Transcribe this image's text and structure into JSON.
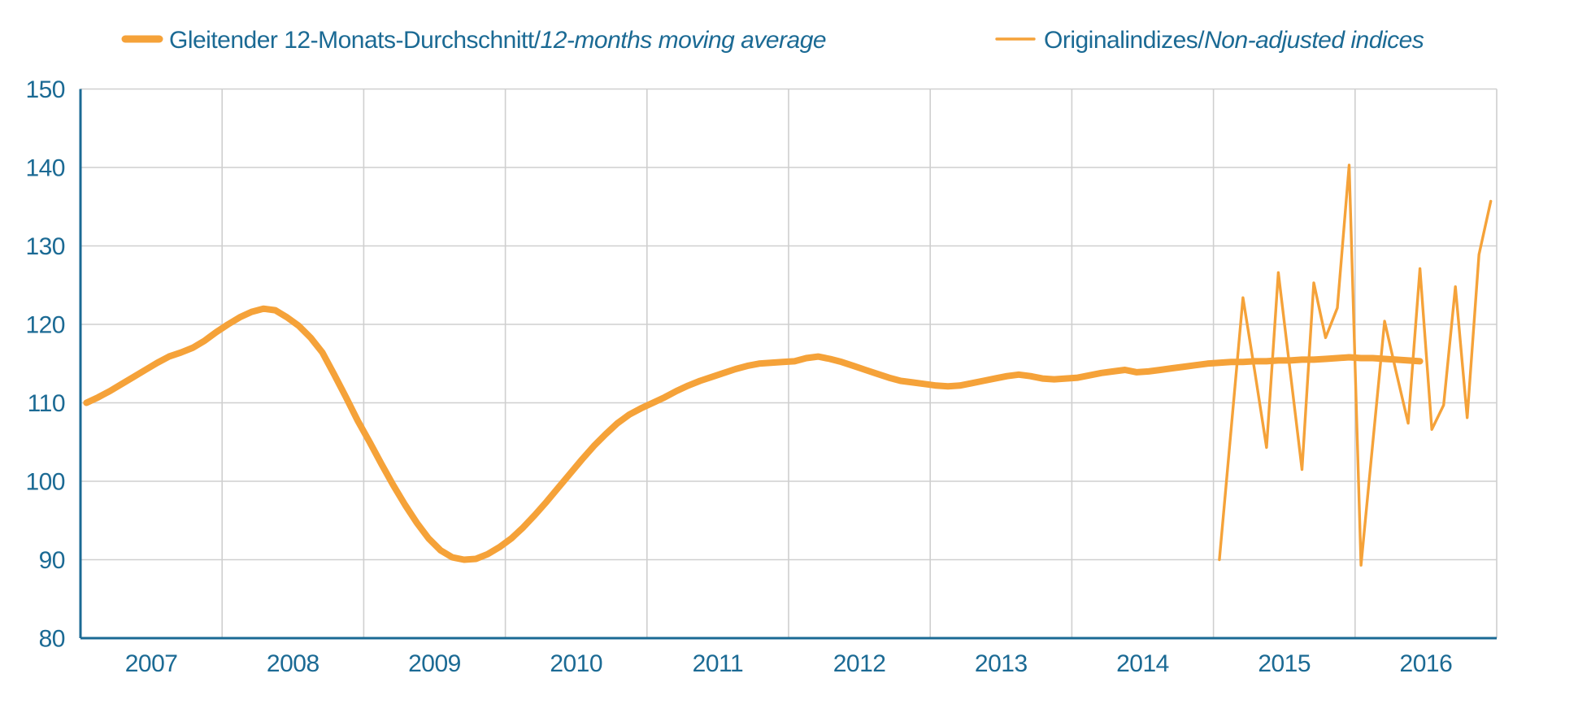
{
  "legend": [
    {
      "label_regular": "Gleitender 12-Monats-Durchschnitt/",
      "label_italic": "12-months moving average",
      "swatch": "thick-line"
    },
    {
      "label_regular": "Originalindizes/",
      "label_italic": "Non-adjusted indices",
      "swatch": "thin-line"
    }
  ],
  "colors": {
    "series_orange": "#F5A239",
    "axis_blue": "#1B6A94",
    "text_blue": "#1B6A94",
    "gridline_gray": "#CFCFCF",
    "background": "#FFFFFF"
  },
  "chart_data": {
    "type": "line",
    "title": "",
    "xlabel": "",
    "ylabel": "",
    "grid": true,
    "legend_position": "top",
    "y_axis": {
      "min": 80,
      "max": 150,
      "step": 10,
      "ticks": [
        150,
        140,
        130,
        120,
        110,
        100,
        90,
        80
      ]
    },
    "x_axis": {
      "ticks": [
        2007,
        2008,
        2009,
        2010,
        2011,
        2012,
        2013,
        2014,
        2015,
        2016
      ]
    },
    "series": [
      {
        "name": "Gleitender 12-Monats-Durchschnitt/12-months moving average",
        "style": "thick",
        "start_year": 2007,
        "start_month": 1,
        "values": [
          110.0,
          110.7,
          111.5,
          112.4,
          113.3,
          114.2,
          115.1,
          115.9,
          116.4,
          117.0,
          117.9,
          119.0,
          120.0,
          120.9,
          121.6,
          122.0,
          121.8,
          120.9,
          119.8,
          118.3,
          116.4,
          113.6,
          110.7,
          107.7,
          105.0,
          102.2,
          99.5,
          97.0,
          94.7,
          92.7,
          91.2,
          90.3,
          90.0,
          90.1,
          90.7,
          91.6,
          92.7,
          94.1,
          95.7,
          97.4,
          99.2,
          101.0,
          102.8,
          104.5,
          106.0,
          107.4,
          108.5,
          109.3,
          110.0,
          110.7,
          111.5,
          112.2,
          112.8,
          113.3,
          113.8,
          114.3,
          114.7,
          115.0,
          115.1,
          115.2,
          115.3,
          115.7,
          115.9,
          115.6,
          115.2,
          114.7,
          114.2,
          113.7,
          113.2,
          112.8,
          112.6,
          112.4,
          112.2,
          112.1,
          112.2,
          112.5,
          112.8,
          113.1,
          113.4,
          113.6,
          113.4,
          113.1,
          113.0,
          113.1,
          113.2,
          113.5,
          113.8,
          114.0,
          114.2,
          113.9,
          114.0,
          114.2,
          114.4,
          114.6,
          114.8,
          115.0,
          115.1,
          115.2,
          115.2,
          115.3,
          115.3,
          115.4,
          115.4,
          115.5,
          115.5,
          115.6,
          115.7,
          115.8,
          115.7,
          115.7,
          115.6,
          115.5,
          115.4,
          115.3
        ]
      },
      {
        "name": "Originalindizes/Non-adjusted indices",
        "style": "thin",
        "start_year": 2015,
        "start_month": 1,
        "values": [
          90.0,
          106.7,
          123.4,
          114.0,
          104.3,
          126.6,
          114.0,
          101.5,
          125.3,
          118.3,
          122.1,
          140.3,
          89.3,
          104.9,
          120.4,
          113.8,
          107.4,
          127.1,
          106.6,
          109.7,
          124.8,
          108.1,
          128.9,
          135.7
        ]
      }
    ]
  }
}
